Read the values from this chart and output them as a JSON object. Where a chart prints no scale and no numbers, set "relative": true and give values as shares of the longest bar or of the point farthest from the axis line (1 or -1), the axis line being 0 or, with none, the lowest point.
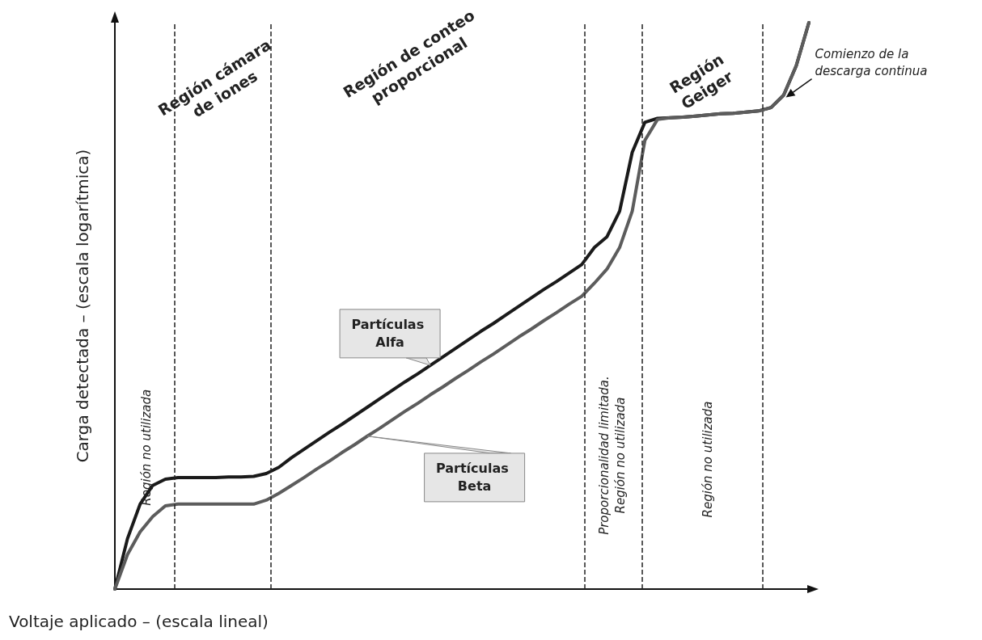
{
  "chart_data": {
    "type": "line",
    "relative": true,
    "xlabel": "Voltaje aplicado – (escala lineal)",
    "ylabel": "Carga detectada – (escala logarítmica)",
    "grid": false,
    "legend": false,
    "marker": "none",
    "line_style": "solid",
    "categories": [
      null,
      null,
      null,
      null,
      null,
      null,
      null,
      null,
      null,
      null,
      null,
      null,
      null,
      null,
      null,
      null,
      null,
      null,
      null,
      null,
      null,
      null,
      null,
      null,
      null,
      null,
      null,
      null,
      null,
      null,
      null,
      null,
      null,
      null,
      null,
      null,
      null,
      null,
      null,
      null,
      null,
      null,
      null,
      null,
      null,
      null,
      null,
      null,
      null,
      null,
      null,
      null,
      null,
      null,
      null,
      null
    ],
    "series": [
      {
        "name": "Partículas Alfa",
        "color": "#1a1a1a",
        "values": [
          0,
          0.089,
          0.15,
          0.183,
          0.194,
          0.197,
          0.197,
          0.197,
          0.197,
          0.198,
          0.198,
          0.199,
          0.204,
          0.215,
          0.232,
          0.247,
          0.262,
          0.277,
          0.291,
          0.306,
          0.321,
          0.336,
          0.351,
          0.366,
          0.38,
          0.395,
          0.41,
          0.425,
          0.44,
          0.455,
          0.469,
          0.484,
          0.499,
          0.514,
          0.529,
          0.543,
          0.558,
          0.573,
          0.603,
          0.622,
          0.667,
          0.771,
          0.824,
          0.831,
          0.832,
          0.833,
          0.835,
          0.837,
          0.839,
          0.84,
          0.842,
          0.844,
          0.85,
          0.872,
          0.924,
          1
        ]
      },
      {
        "name": "Partículas Beta",
        "color": "#5c5c5c",
        "values": [
          0,
          0.061,
          0.101,
          0.128,
          0.147,
          0.15,
          0.15,
          0.15,
          0.15,
          0.15,
          0.15,
          0.15,
          0.157,
          0.169,
          0.183,
          0.197,
          0.212,
          0.226,
          0.241,
          0.255,
          0.27,
          0.284,
          0.299,
          0.314,
          0.328,
          0.343,
          0.357,
          0.372,
          0.386,
          0.401,
          0.415,
          0.43,
          0.445,
          0.459,
          0.474,
          0.488,
          0.503,
          0.517,
          0.54,
          0.565,
          0.603,
          0.667,
          0.792,
          0.829,
          0.832,
          0.833,
          0.835,
          0.837,
          0.839,
          0.84,
          0.842,
          0.844,
          0.85,
          0.872,
          0.924,
          1
        ]
      }
    ],
    "annotations": [
      "Región cámara\nde iones",
      "Región de conteo\nproporcional",
      "Región\nGeiger",
      "Región no utilizada",
      "Proporcionalidad limitada.\nRegión no utilizada",
      "Región no utilizada",
      "Comienzo de la\ndescarga continua"
    ]
  }
}
